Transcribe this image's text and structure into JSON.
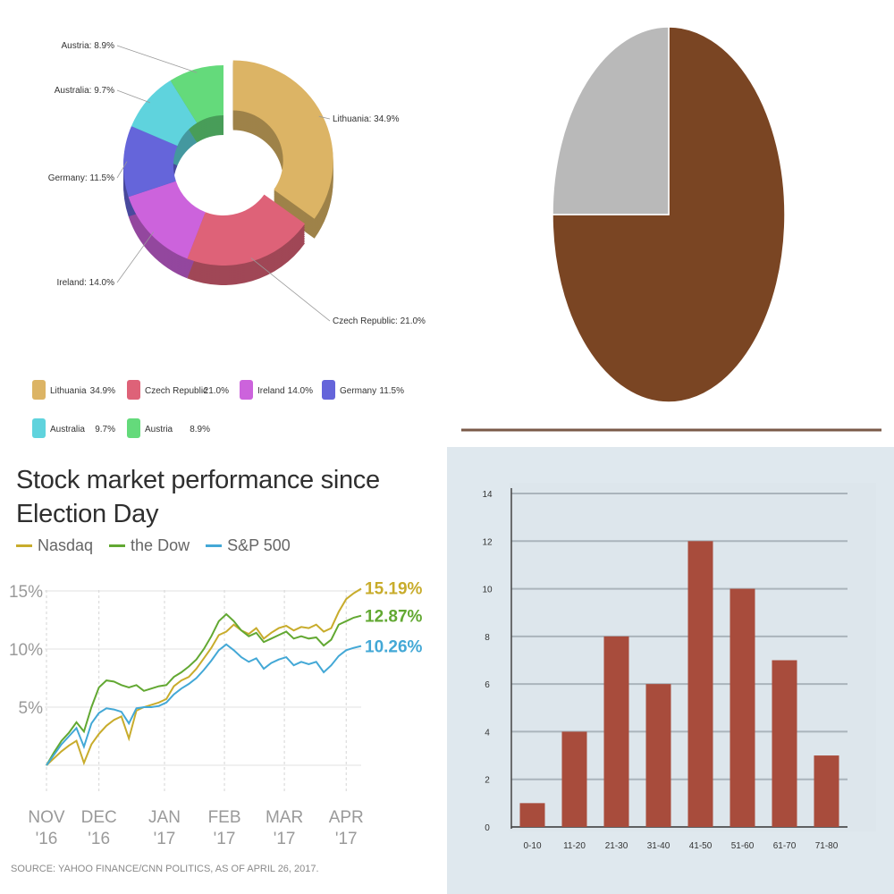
{
  "chart_data": [
    {
      "type": "pie",
      "variant": "donut-3d",
      "categories": [
        "Lithuania",
        "Czech Republic",
        "Ireland",
        "Germany",
        "Australia",
        "Austria"
      ],
      "values": [
        34.9,
        21.0,
        14.0,
        11.5,
        9.7,
        8.9
      ],
      "slice_labels": [
        "Lithuania: 34.9%",
        "Czech Republic: 21.0%",
        "Ireland: 14.0%",
        "Germany: 11.5%",
        "Australia: 9.7%",
        "Austria: 8.9%"
      ],
      "legend_values": [
        "34.9%",
        "21.0%",
        "14.0%",
        "11.5%",
        "9.7%",
        "8.9%"
      ],
      "colors": [
        "#dcb465",
        "#de6278",
        "#cc63dc",
        "#6565da",
        "#5fd3dd",
        "#64da7b"
      ],
      "legend_placement": "bottom"
    },
    {
      "type": "pie",
      "values": [
        75,
        25
      ],
      "colors": [
        "#7a4523",
        "#b9b9b9"
      ]
    },
    {
      "type": "line",
      "title": "Stock market performance since Election Day",
      "source": "SOURCE: YAHOO FINANCE/CNN POLITICS, AS OF APRIL 26, 2017.",
      "x_ticks": [
        "NOV '16",
        "DEC '16",
        "JAN '17",
        "FEB '17",
        "MAR '17",
        "APR '17"
      ],
      "y_ticks": [
        "15%",
        "10%",
        "5%"
      ],
      "ylim": [
        0,
        16
      ],
      "series": [
        {
          "name": "Nasdaq",
          "color": "#c8ac2c",
          "end_label": "15.19%",
          "x": [
            0,
            4,
            8,
            12,
            16,
            20,
            24,
            28,
            32,
            36,
            40,
            44,
            48,
            52,
            56,
            60,
            64,
            68,
            72,
            76,
            80,
            84,
            88,
            92,
            96,
            100,
            104,
            108,
            112,
            116,
            120,
            124,
            128,
            132,
            136,
            140,
            144,
            148,
            152,
            156,
            160,
            164,
            168
          ],
          "values": [
            0.0,
            0.6,
            1.2,
            1.7,
            2.1,
            0.2,
            1.8,
            2.7,
            3.4,
            3.9,
            4.2,
            2.3,
            4.7,
            5.0,
            5.2,
            5.4,
            5.7,
            6.8,
            7.3,
            7.6,
            8.3,
            9.2,
            10.1,
            11.2,
            11.5,
            12.1,
            11.6,
            11.3,
            11.8,
            10.9,
            11.4,
            11.8,
            12.0,
            11.6,
            11.9,
            11.8,
            12.1,
            11.5,
            11.8,
            13.2,
            14.3,
            14.8,
            15.19
          ]
        },
        {
          "name": "the Dow",
          "color": "#62a832",
          "end_label": "12.87%",
          "x": [
            0,
            4,
            8,
            12,
            16,
            20,
            24,
            28,
            32,
            36,
            40,
            44,
            48,
            52,
            56,
            60,
            64,
            68,
            72,
            76,
            80,
            84,
            88,
            92,
            96,
            100,
            104,
            108,
            112,
            116,
            120,
            124,
            128,
            132,
            136,
            140,
            144,
            148,
            152,
            156,
            160,
            164,
            168
          ],
          "values": [
            0.0,
            1.1,
            2.1,
            2.8,
            3.7,
            2.9,
            5.0,
            6.7,
            7.3,
            7.2,
            6.9,
            6.7,
            6.9,
            6.4,
            6.6,
            6.8,
            6.9,
            7.6,
            8.0,
            8.5,
            9.1,
            10.0,
            11.1,
            12.4,
            13.0,
            12.4,
            11.6,
            11.1,
            11.4,
            10.6,
            10.9,
            11.2,
            11.5,
            10.9,
            11.1,
            10.9,
            11.0,
            10.3,
            10.8,
            12.1,
            12.4,
            12.7,
            12.87
          ]
        },
        {
          "name": "S&P 500",
          "color": "#43a8d6",
          "end_label": "10.26%",
          "x": [
            0,
            4,
            8,
            12,
            16,
            20,
            24,
            28,
            32,
            36,
            40,
            44,
            48,
            52,
            56,
            60,
            64,
            68,
            72,
            76,
            80,
            84,
            88,
            92,
            96,
            100,
            104,
            108,
            112,
            116,
            120,
            124,
            128,
            132,
            136,
            140,
            144,
            148,
            152,
            156,
            160,
            164,
            168
          ],
          "values": [
            0.0,
            0.9,
            1.8,
            2.5,
            3.2,
            1.6,
            3.6,
            4.5,
            4.9,
            4.8,
            4.6,
            3.6,
            4.9,
            5.0,
            5.0,
            5.1,
            5.4,
            6.1,
            6.6,
            7.0,
            7.5,
            8.2,
            9.0,
            9.9,
            10.4,
            9.9,
            9.3,
            8.9,
            9.2,
            8.3,
            8.8,
            9.1,
            9.3,
            8.6,
            8.9,
            8.7,
            8.9,
            8.0,
            8.6,
            9.4,
            9.9,
            10.1,
            10.26
          ]
        }
      ],
      "legend_placement": "top"
    },
    {
      "type": "bar",
      "categories": [
        "0-10",
        "11-20",
        "21-30",
        "31-40",
        "41-50",
        "51-60",
        "61-70",
        "71-80"
      ],
      "values": [
        1,
        4,
        8,
        6,
        12,
        10,
        7,
        3
      ],
      "ylim": [
        0,
        14
      ],
      "y_ticks": [
        "0",
        "2",
        "4",
        "6",
        "8",
        "10",
        "12",
        "14"
      ],
      "color": "#a84c3c",
      "grid": true
    }
  ]
}
